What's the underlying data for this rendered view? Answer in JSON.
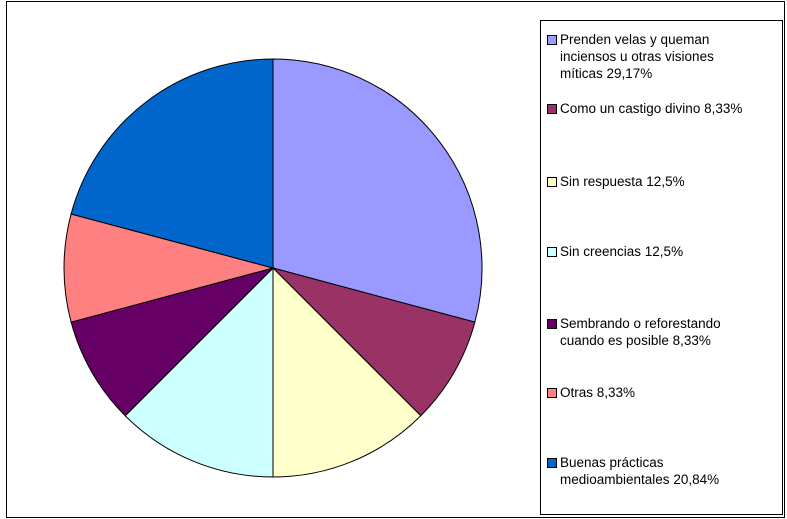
{
  "chart_data": {
    "type": "pie",
    "slices": [
      {
        "label": "Prenden velas y queman inciensos u otras visiones míticas 29,17%",
        "value": 29.17,
        "color": "#9999ff"
      },
      {
        "label": "Como un castigo divino 8,33%",
        "value": 8.33,
        "color": "#993366"
      },
      {
        "label": "Sin respuesta 12,5%",
        "value": 12.5,
        "color": "#ffffcc"
      },
      {
        "label": "Sin creencias 12,5%",
        "value": 12.5,
        "color": "#ccffff"
      },
      {
        "label": "Sembrando o reforestando cuando es posible 8,33%",
        "value": 8.33,
        "color": "#660066"
      },
      {
        "label": "Otras 8,33%",
        "value": 8.33,
        "color": "#ff8080"
      },
      {
        "label": "Buenas prácticas medioambientales 20,84%",
        "value": 20.84,
        "color": "#0066cc"
      }
    ],
    "legend_position": "right"
  }
}
